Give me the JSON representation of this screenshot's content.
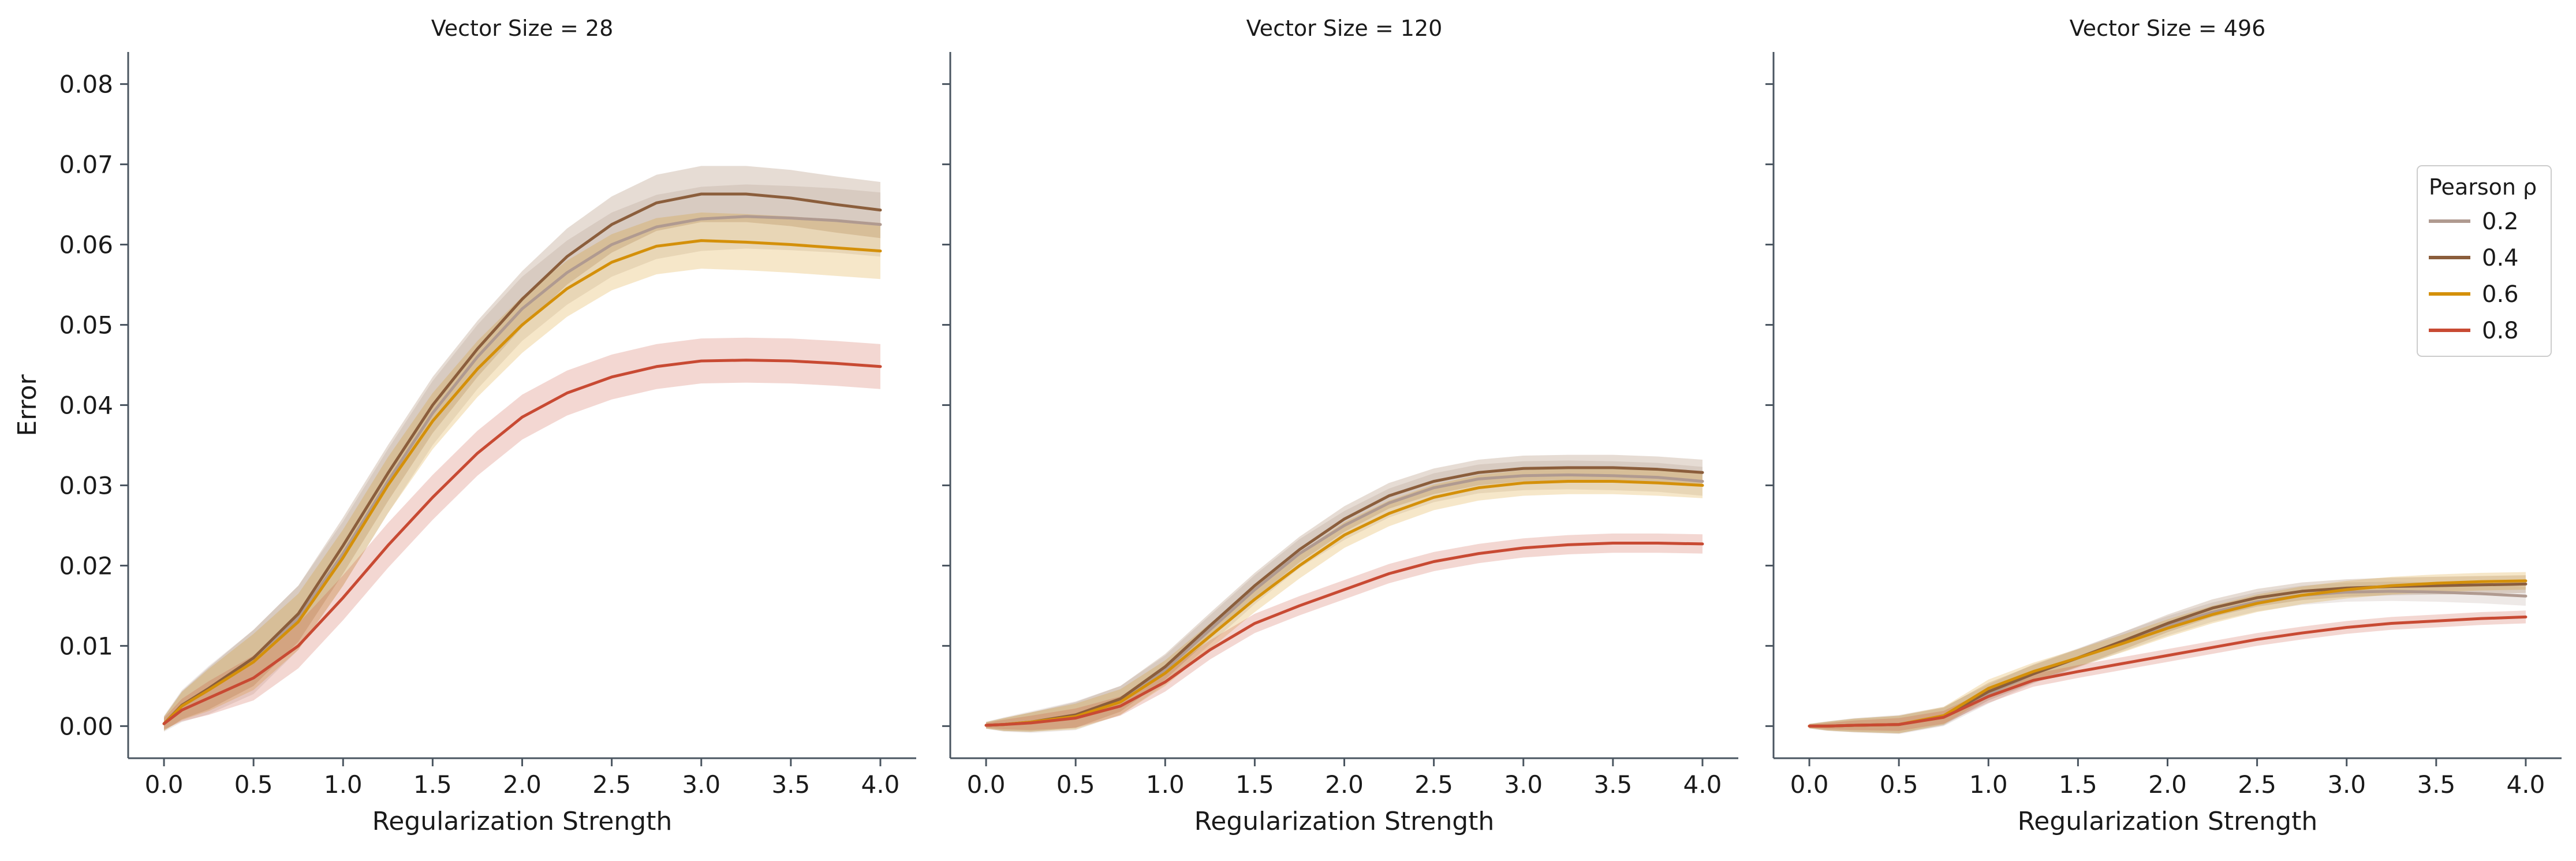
{
  "chart_data": {
    "type": "line",
    "shared_y": true,
    "ylabel": "Error",
    "ylim": [
      -0.004,
      0.084
    ],
    "yticks": [
      0.0,
      0.01,
      0.02,
      0.03,
      0.04,
      0.05,
      0.06,
      0.07,
      0.08
    ],
    "ytick_labels": [
      "0.00",
      "0.01",
      "0.02",
      "0.03",
      "0.04",
      "0.05",
      "0.06",
      "0.07",
      "0.08"
    ],
    "xlim": [
      -0.2,
      4.2
    ],
    "xticks": [
      0.0,
      0.5,
      1.0,
      1.5,
      2.0,
      2.5,
      3.0,
      3.5,
      4.0
    ],
    "xtick_labels": [
      "0.0",
      "0.5",
      "1.0",
      "1.5",
      "2.0",
      "2.5",
      "3.0",
      "3.5",
      "4.0"
    ],
    "x": [
      0.0,
      0.1,
      0.25,
      0.5,
      0.75,
      1.0,
      1.25,
      1.5,
      1.75,
      2.0,
      2.25,
      2.5,
      2.75,
      3.0,
      3.25,
      3.5,
      3.75,
      4.0
    ],
    "legend": {
      "title": "Pearson ρ",
      "placement": "right",
      "entries": [
        {
          "label": "0.2",
          "color": "#b09a90"
        },
        {
          "label": "0.4",
          "color": "#8b5e3c"
        },
        {
          "label": "0.6",
          "color": "#d4900a"
        },
        {
          "label": "0.8",
          "color": "#c84a33"
        }
      ]
    },
    "panels": [
      {
        "title": "Vector Size = 28",
        "xlabel": "Regularization Strength",
        "series": [
          {
            "name": "0.2",
            "color": "#b09a90",
            "values": [
              0.0003,
              0.0025,
              0.0045,
              0.008,
              0.0135,
              0.0215,
              0.0305,
              0.039,
              0.046,
              0.052,
              0.0565,
              0.06,
              0.0622,
              0.0632,
              0.0635,
              0.0633,
              0.063,
              0.0625
            ],
            "band": 0.004
          },
          {
            "name": "0.4",
            "color": "#8b5e3c",
            "values": [
              0.0003,
              0.0026,
              0.0047,
              0.0085,
              0.014,
              0.0225,
              0.0315,
              0.04,
              0.047,
              0.0532,
              0.0585,
              0.0625,
              0.0652,
              0.0663,
              0.0663,
              0.0658,
              0.065,
              0.0643
            ],
            "band": 0.0035
          },
          {
            "name": "0.6",
            "color": "#d4900a",
            "values": [
              0.0003,
              0.0025,
              0.0045,
              0.008,
              0.013,
              0.021,
              0.03,
              0.038,
              0.0445,
              0.05,
              0.0545,
              0.0578,
              0.0598,
              0.0605,
              0.0603,
              0.06,
              0.0596,
              0.0592
            ],
            "band": 0.0035
          },
          {
            "name": "0.8",
            "color": "#c84a33",
            "values": [
              0.0003,
              0.002,
              0.0035,
              0.006,
              0.01,
              0.016,
              0.0225,
              0.0285,
              0.034,
              0.0385,
              0.0415,
              0.0435,
              0.0448,
              0.0455,
              0.0456,
              0.0455,
              0.0452,
              0.0448
            ],
            "band": 0.0028
          }
        ]
      },
      {
        "title": "Vector Size = 120",
        "xlabel": "Regularization Strength",
        "series": [
          {
            "name": "0.2",
            "color": "#b09a90",
            "values": [
              0.0001,
              0.0002,
              0.0005,
              0.0013,
              0.0032,
              0.007,
              0.012,
              0.017,
              0.0215,
              0.025,
              0.0278,
              0.0297,
              0.0308,
              0.0312,
              0.0313,
              0.0312,
              0.031,
              0.0305
            ],
            "band": 0.0018
          },
          {
            "name": "0.4",
            "color": "#8b5e3c",
            "values": [
              0.0001,
              0.0002,
              0.0005,
              0.0014,
              0.0034,
              0.0074,
              0.0125,
              0.0175,
              0.022,
              0.0258,
              0.0287,
              0.0305,
              0.0316,
              0.0321,
              0.0322,
              0.0322,
              0.032,
              0.0316
            ],
            "band": 0.0016
          },
          {
            "name": "0.6",
            "color": "#d4900a",
            "values": [
              0.0001,
              0.0002,
              0.0005,
              0.0012,
              0.003,
              0.0066,
              0.0112,
              0.0158,
              0.02,
              0.0238,
              0.0265,
              0.0285,
              0.0297,
              0.0303,
              0.0305,
              0.0305,
              0.0303,
              0.03
            ],
            "band": 0.0016
          },
          {
            "name": "0.8",
            "color": "#c84a33",
            "values": [
              0.0001,
              0.0002,
              0.0004,
              0.001,
              0.0025,
              0.0055,
              0.0095,
              0.0128,
              0.015,
              0.017,
              0.019,
              0.0205,
              0.0215,
              0.0222,
              0.0226,
              0.0228,
              0.0228,
              0.0227
            ],
            "band": 0.0012
          }
        ]
      },
      {
        "title": "Vector Size = 496",
        "xlabel": "Regularization Strength",
        "series": [
          {
            "name": "0.2",
            "color": "#b09a90",
            "values": [
              0.0,
              0.0,
              0.0001,
              0.0002,
              0.0012,
              0.004,
              0.0065,
              0.0085,
              0.0105,
              0.0125,
              0.0142,
              0.0155,
              0.0163,
              0.0167,
              0.0168,
              0.0167,
              0.0165,
              0.0162
            ],
            "band": 0.0012
          },
          {
            "name": "0.4",
            "color": "#8b5e3c",
            "values": [
              0.0,
              0.0,
              0.0001,
              0.0002,
              0.0012,
              0.0043,
              0.0065,
              0.0085,
              0.0106,
              0.0128,
              0.0147,
              0.016,
              0.0168,
              0.0172,
              0.0174,
              0.0175,
              0.0176,
              0.0177
            ],
            "band": 0.0011
          },
          {
            "name": "0.6",
            "color": "#d4900a",
            "values": [
              0.0,
              0.0,
              0.0001,
              0.0002,
              0.0013,
              0.0047,
              0.0068,
              0.0085,
              0.0103,
              0.0122,
              0.0139,
              0.0153,
              0.0163,
              0.017,
              0.0175,
              0.0178,
              0.018,
              0.0181
            ],
            "band": 0.0011
          },
          {
            "name": "0.8",
            "color": "#c84a33",
            "values": [
              0.0,
              0.0,
              0.0001,
              0.0002,
              0.0011,
              0.0037,
              0.0057,
              0.0068,
              0.0078,
              0.0088,
              0.0098,
              0.0108,
              0.0116,
              0.0123,
              0.0128,
              0.0131,
              0.0134,
              0.0136
            ],
            "band": 0.0008
          }
        ]
      }
    ]
  }
}
